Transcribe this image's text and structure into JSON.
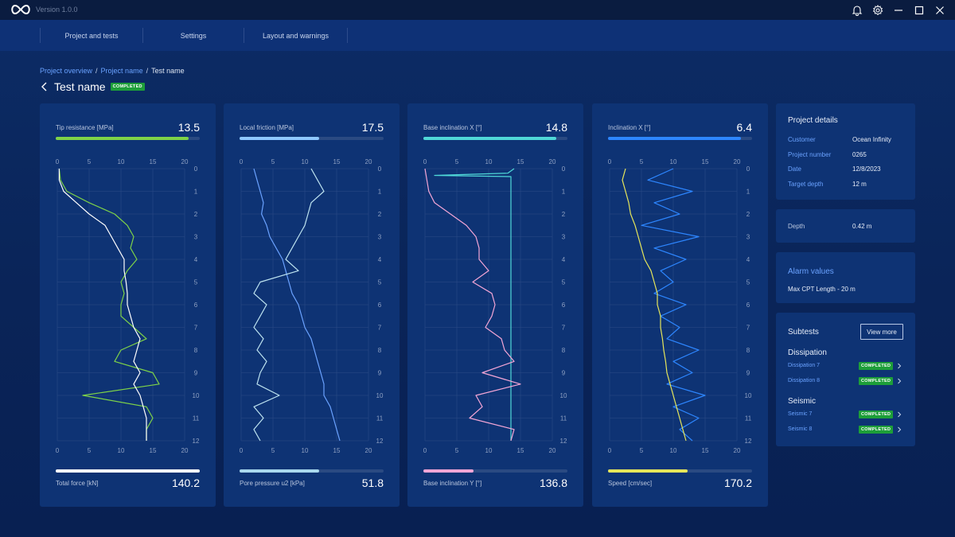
{
  "app": {
    "version": "Version 1.0.0",
    "icons": [
      "logo-icon",
      "bell-icon",
      "gear-icon",
      "minimize-icon",
      "maximize-icon",
      "close-icon"
    ]
  },
  "nav": {
    "items": [
      {
        "label": "Project and tests"
      },
      {
        "label": "Settings"
      },
      {
        "label": "Layout and warnings"
      }
    ]
  },
  "breadcrumb": {
    "items": [
      "Project overview",
      "Project name",
      "Test name"
    ],
    "separator": "/"
  },
  "page": {
    "title": "Test name",
    "status": "COMPLETED"
  },
  "cards": [
    {
      "top_label": "Tip resistance [MPa]",
      "top_value": "13.5",
      "top_color": "#7ed348",
      "top_fill": 0.92,
      "bottom_label": "Total force [kN]",
      "bottom_value": "140.2",
      "bottom_color": "#ffffff",
      "bottom_fill": 1.0
    },
    {
      "top_label": "Local friction [MPa]",
      "top_value": "17.5",
      "top_color": "#8ec8ff",
      "top_fill": 0.55,
      "bottom_label": "Pore pressure u2 [kPa]",
      "bottom_value": "51.8",
      "bottom_color": "#a9d8ee",
      "bottom_fill": 0.55
    },
    {
      "top_label": "Base inclination X [°]",
      "top_value": "14.8",
      "top_color": "#4fd8d8",
      "top_fill": 0.92,
      "bottom_label": "Base inclination Y [°]",
      "bottom_value": "136.8",
      "bottom_color": "#f4a6d6",
      "bottom_fill": 0.35
    },
    {
      "top_label": "Inclination  X [°]",
      "top_value": "6.4",
      "top_color": "#2d86ff",
      "top_fill": 0.92,
      "bottom_label": "Speed [cm/sec]",
      "bottom_value": "170.2",
      "bottom_color": "#e6e65a",
      "bottom_fill": 0.55
    }
  ],
  "chart_data": [
    {
      "type": "line",
      "x_ticks": [
        "0",
        "5",
        "10",
        "15",
        "20"
      ],
      "depth_ticks": [
        "0",
        "1",
        "2",
        "3",
        "4",
        "5",
        "6",
        "7",
        "8",
        "9",
        "10",
        "11",
        "12"
      ],
      "xlim": [
        0,
        20
      ],
      "depth_lim": [
        0,
        12
      ],
      "grid": true,
      "series": [
        {
          "color": "#7ed348",
          "depth": [
            0,
            0.5,
            1,
            1.5,
            2,
            2.5,
            3,
            3.5,
            4,
            4.5,
            5,
            5.5,
            6,
            6.5,
            7,
            7.5,
            8,
            8.5,
            9,
            9.5,
            10,
            10.5,
            11,
            11.5,
            12
          ],
          "values": [
            0.3,
            0.5,
            1.5,
            5,
            9,
            11,
            12,
            11.5,
            12.5,
            11,
            10,
            10.5,
            10,
            10,
            12,
            14,
            10,
            9,
            15,
            16,
            4,
            14,
            15,
            14,
            14
          ]
        },
        {
          "color": "#ffffff",
          "depth": [
            0,
            0.5,
            1,
            1.5,
            2,
            2.5,
            3,
            3.5,
            4,
            4.5,
            5,
            5.5,
            6,
            6.5,
            7,
            7.5,
            8,
            8.5,
            9,
            9.5,
            10,
            10.5,
            11,
            11.5,
            12
          ],
          "values": [
            0.3,
            0.3,
            1,
            3,
            5,
            7.5,
            8.5,
            9.5,
            10.5,
            10.5,
            10.8,
            11,
            11,
            11.5,
            12,
            13,
            12.5,
            12,
            13,
            12,
            13,
            13.5,
            14,
            14,
            14
          ]
        }
      ]
    },
    {
      "type": "line",
      "x_ticks": [
        "0",
        "5",
        "10",
        "15",
        "20"
      ],
      "depth_ticks": [
        "0",
        "1",
        "2",
        "3",
        "4",
        "5",
        "6",
        "7",
        "8",
        "9",
        "10",
        "11",
        "12"
      ],
      "xlim": [
        0,
        20
      ],
      "depth_lim": [
        0,
        12
      ],
      "grid": true,
      "series": [
        {
          "color": "#6aa2ff",
          "depth": [
            0,
            0.5,
            1,
            1.5,
            2,
            2.5,
            3,
            3.5,
            4,
            4.5,
            5,
            5.5,
            6,
            6.5,
            7,
            7.5,
            8,
            8.5,
            9,
            9.5,
            10,
            10.5,
            11,
            11.5,
            12
          ],
          "values": [
            2,
            2.5,
            3,
            3.5,
            3.2,
            4,
            4.5,
            5.5,
            6.5,
            7,
            7.5,
            8,
            9,
            9.5,
            10,
            11,
            11.5,
            12,
            12.5,
            13,
            13,
            14,
            14.5,
            15,
            15.5
          ]
        },
        {
          "color": "#bde3f0",
          "depth": [
            0,
            0.5,
            1,
            1.5,
            2,
            2.5,
            3,
            3.5,
            4,
            4.5,
            5,
            5.5,
            6,
            6.5,
            7,
            7.5,
            8,
            8.5,
            9,
            9.5,
            10,
            10.5,
            11,
            11.5,
            12
          ],
          "values": [
            11,
            12,
            13,
            11,
            10.5,
            10,
            9,
            8,
            7,
            9,
            3,
            2,
            4,
            3,
            2,
            3.5,
            2.5,
            4,
            3,
            2.5,
            6,
            2,
            3.5,
            2,
            3
          ]
        }
      ]
    },
    {
      "type": "line",
      "x_ticks": [
        "0",
        "5",
        "10",
        "15",
        "20"
      ],
      "depth_ticks": [
        "0",
        "1",
        "2",
        "3",
        "4",
        "5",
        "6",
        "7",
        "8",
        "9",
        "10",
        "11",
        "12"
      ],
      "xlim": [
        0,
        20
      ],
      "depth_lim": [
        0,
        12
      ],
      "grid": true,
      "series": [
        {
          "color": "#4fd8d8",
          "depth": [
            0,
            0.2,
            0.3,
            0.35,
            0.5,
            1,
            2,
            3,
            4,
            5,
            6,
            7,
            8,
            9,
            10,
            11,
            12
          ],
          "values": [
            14,
            13,
            1.5,
            13.5,
            13.5,
            13.5,
            13.5,
            13.5,
            13.5,
            13.5,
            13.5,
            13.5,
            13.5,
            13.5,
            13.5,
            13.5,
            13.5
          ]
        },
        {
          "color": "#f4a6d6",
          "depth": [
            0,
            0.5,
            1,
            1.5,
            2,
            2.5,
            3,
            3.5,
            4,
            4.5,
            5,
            5.5,
            6,
            6.5,
            7,
            7.5,
            8,
            8.5,
            9,
            9.5,
            10,
            10.5,
            11,
            11.5,
            12
          ],
          "values": [
            0,
            0.3,
            0.6,
            1.5,
            4,
            6.5,
            8,
            8.5,
            8.5,
            10,
            7.5,
            10.5,
            11,
            10.5,
            9.5,
            12,
            12.5,
            14,
            9,
            15,
            8,
            9,
            7,
            14,
            13.5
          ]
        }
      ]
    },
    {
      "type": "line",
      "x_ticks": [
        "0",
        "5",
        "10",
        "15",
        "20"
      ],
      "depth_ticks": [
        "0",
        "1",
        "2",
        "3",
        "4",
        "5",
        "6",
        "7",
        "8",
        "9",
        "10",
        "11",
        "12"
      ],
      "xlim": [
        0,
        20
      ],
      "depth_lim": [
        0,
        12
      ],
      "grid": true,
      "series": [
        {
          "color": "#2d86ff",
          "depth": [
            0,
            0.5,
            1,
            1.5,
            2,
            2.5,
            3,
            3.5,
            4,
            4.5,
            5,
            5.5,
            6,
            6.5,
            7,
            7.5,
            8,
            8.5,
            9,
            9.5,
            10,
            10.5,
            11,
            11.5,
            12
          ],
          "values": [
            10,
            6,
            13,
            7,
            11,
            5,
            14,
            7,
            12,
            8,
            10,
            7,
            12,
            8,
            11,
            9,
            14,
            10,
            13,
            9,
            15,
            10,
            14,
            11,
            13
          ]
        },
        {
          "color": "#e6e65a",
          "depth": [
            0,
            0.5,
            1,
            1.5,
            2,
            2.5,
            3,
            3.5,
            4,
            4.5,
            5,
            5.5,
            6,
            6.5,
            7,
            7.5,
            8,
            8.5,
            9,
            9.5,
            10,
            10.5,
            11,
            11.5,
            12
          ],
          "values": [
            2.5,
            2,
            2.5,
            3,
            3.3,
            4,
            4.5,
            5,
            5.5,
            6.5,
            7,
            7.5,
            7.5,
            8,
            8,
            8.3,
            8.5,
            8.8,
            9,
            9.5,
            10,
            10.5,
            11,
            11.5,
            12
          ]
        }
      ]
    }
  ],
  "details": {
    "heading": "Project details",
    "rows": [
      {
        "key": "Customer",
        "value": "Ocean Infinity"
      },
      {
        "key": "Project number",
        "value": "0265"
      },
      {
        "key": "Date",
        "value": "12/8/2023"
      },
      {
        "key": "Target depth",
        "value": "12 m"
      }
    ]
  },
  "depth": {
    "key": "Depth",
    "value": "0.42 m"
  },
  "alarm": {
    "heading": "Alarm values",
    "text": "Max CPT Length - 20 m"
  },
  "subtests": {
    "heading": "Subtests",
    "view_more": "View more",
    "groups": [
      {
        "name": "Dissipation",
        "items": [
          {
            "label": "Dissipation 7",
            "status": "COMPLETED"
          },
          {
            "label": "Dissipation 8",
            "status": "COMPLETED"
          }
        ]
      },
      {
        "name": "Seismic",
        "items": [
          {
            "label": "Seismic 7",
            "status": "COMPLETED"
          },
          {
            "label": "Seismic 8",
            "status": "COMPLETED"
          }
        ]
      }
    ]
  }
}
